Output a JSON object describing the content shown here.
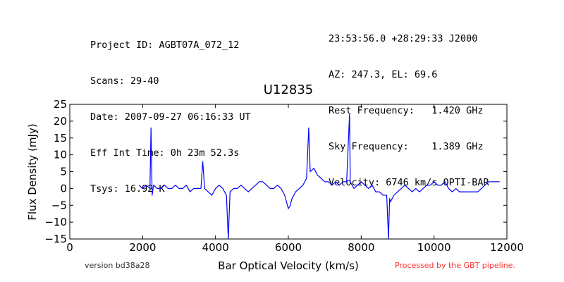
{
  "header": {
    "left_lines": [
      "Project ID: AGBT07A_072_12",
      "Scans: 29-40",
      "Date: 2007-09-27 06:16:33 UT",
      "Eff Int Time: 0h 23m 52.3s",
      "Tsys: 16.92 K"
    ],
    "right_lines": [
      "23:53:56.0 +28:29:33 J2000",
      "AZ: 247.3, EL: 69.6",
      "Rest Frequency:   1.420 GHz",
      "Sky Frequency:    1.389 GHz",
      "Velocity: 6746 km/s OPTI-BAR"
    ]
  },
  "footer": {
    "version": "version bd38a28",
    "pipeline": "Processed by the GBT pipeline."
  },
  "colors": {
    "series": "#0000ff",
    "footer_note": "#ff3333"
  },
  "chart_data": {
    "type": "line",
    "title": "U12835",
    "xlabel": "Bar Optical Velocity (km/s)",
    "ylabel": "Flux Density (mJy)",
    "xlim": [
      0,
      12000
    ],
    "ylim": [
      -15,
      25
    ],
    "xticks": [
      "0",
      "2000",
      "4000",
      "6000",
      "8000",
      "10000",
      "12000"
    ],
    "xtick_values": [
      0,
      2000,
      4000,
      6000,
      8000,
      10000,
      12000
    ],
    "yticks": [
      "−15",
      "−10",
      "−5",
      "0",
      "5",
      "10",
      "15",
      "20",
      "25"
    ],
    "ytick_values": [
      -15,
      -10,
      -5,
      0,
      5,
      10,
      15,
      20,
      25
    ],
    "grid": false,
    "series": [
      {
        "x": [
          1900,
          2000,
          2100,
          2200,
          2230,
          2260,
          2300,
          2400,
          2500,
          2600,
          2700,
          2800,
          2900,
          3000,
          3100,
          3200,
          3300,
          3400,
          3500,
          3600,
          3650,
          3700,
          3800,
          3900,
          4000,
          4100,
          4200,
          4300,
          4350,
          4400,
          4500,
          4600,
          4700,
          4800,
          4900,
          5000,
          5100,
          5200,
          5300,
          5400,
          5500,
          5600,
          5700,
          5800,
          5900,
          6000,
          6050,
          6100,
          6200,
          6300,
          6400,
          6500,
          6560,
          6600,
          6700,
          6800,
          6900,
          7000,
          7100,
          7200,
          7300,
          7400,
          7500,
          7600,
          7680,
          7700,
          7800,
          7900,
          8000,
          8100,
          8200,
          8300,
          8400,
          8500,
          8600,
          8700,
          8750,
          8780,
          8800,
          8900,
          9000,
          9100,
          9200,
          9300,
          9400,
          9500,
          9600,
          9700,
          9800,
          9900,
          10000,
          10100,
          10200,
          10300,
          10400,
          10500,
          10600,
          10700,
          10800,
          10900,
          11000,
          11100,
          11200,
          11300,
          11400,
          11500,
          11600,
          11700,
          11800
        ],
        "y": [
          1,
          0,
          1,
          0,
          18,
          -2,
          1,
          0,
          0,
          1,
          0,
          0,
          1,
          0,
          0,
          1,
          -1,
          0,
          0,
          0,
          8,
          0,
          -1,
          -2,
          0,
          1,
          0,
          -2,
          -15,
          -1,
          0,
          0,
          1,
          0,
          -1,
          0,
          1,
          2,
          2,
          1,
          0,
          0,
          1,
          0,
          -2,
          -6,
          -5,
          -3,
          -1,
          0,
          1,
          3,
          18,
          5,
          6,
          4,
          3,
          2,
          2,
          1,
          2,
          1,
          2,
          2,
          22,
          2,
          0,
          1,
          2,
          1,
          0,
          1,
          -1,
          -1,
          -2,
          -2,
          -15,
          -3,
          -4,
          -2,
          -1,
          0,
          1,
          0,
          -1,
          0,
          -1,
          0,
          1,
          1,
          2,
          1,
          1,
          2,
          0,
          -1,
          0,
          -1,
          -1,
          -1,
          -1,
          -1,
          -1,
          0,
          1,
          2,
          2,
          2,
          2
        ]
      }
    ]
  }
}
